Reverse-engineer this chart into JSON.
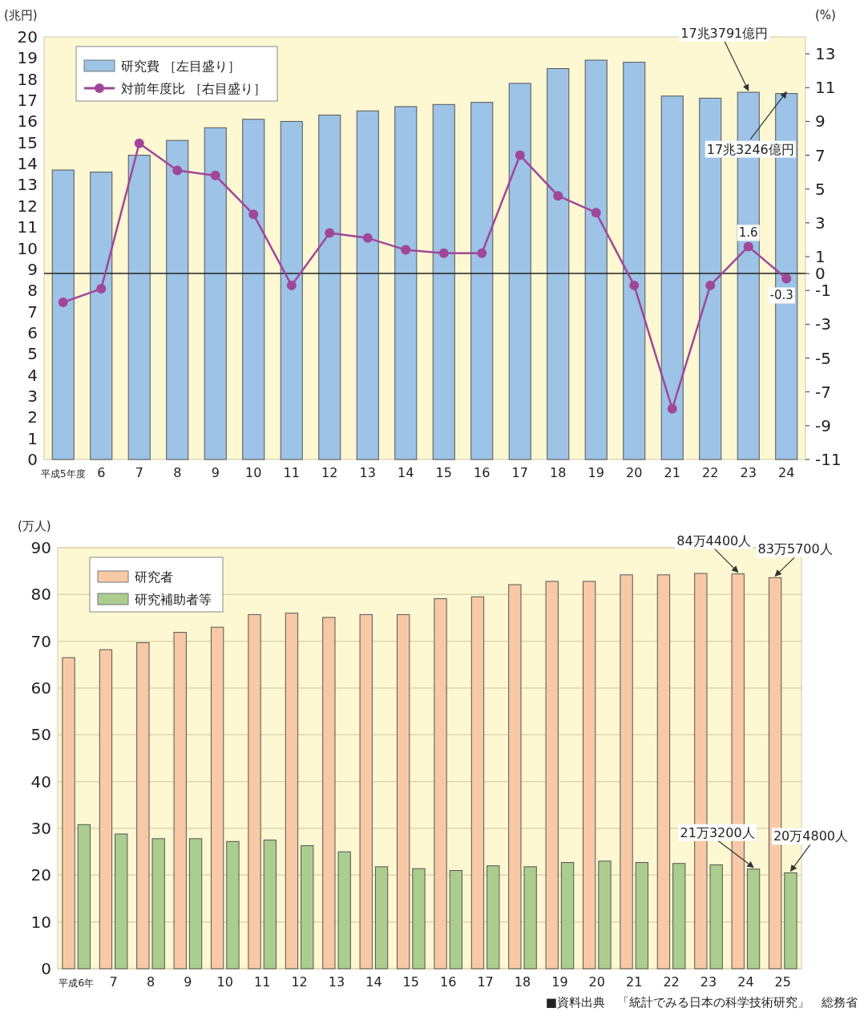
{
  "chart_data": [
    {
      "type": "bar",
      "ylabel": "(兆円)",
      "y2label": "(%)",
      "legend": "top left",
      "marker": "circle",
      "categories": [
        "平成5年度",
        "6",
        "7",
        "8",
        "9",
        "10",
        "11",
        "12",
        "13",
        "14",
        "15",
        "16",
        "17",
        "18",
        "19",
        "20",
        "21",
        "22",
        "23",
        "24"
      ],
      "ylim": [
        0,
        20
      ],
      "yticks": [
        0,
        1,
        2,
        3,
        4,
        5,
        6,
        7,
        8,
        9,
        10,
        11,
        12,
        13,
        14,
        15,
        16,
        17,
        18,
        19,
        20
      ],
      "y2lim": [
        -11,
        14
      ],
      "y2ticks": [
        13,
        11,
        9,
        7,
        5,
        3,
        1,
        0,
        -1,
        -3,
        -5,
        -7,
        -9,
        -11
      ],
      "series": [
        {
          "name": "研究費 ［左目盛り］",
          "color": "#9dc3e6",
          "values": [
            13.7,
            13.6,
            14.4,
            15.1,
            15.7,
            16.1,
            16.0,
            16.3,
            16.5,
            16.7,
            16.8,
            16.9,
            17.8,
            18.5,
            18.9,
            18.8,
            17.2,
            17.1,
            17.38,
            17.32
          ]
        },
        {
          "name": "対前年度比 ［右目盛り］",
          "type": "line",
          "axis": "y2",
          "color": "#a0479a",
          "values": [
            -1.7,
            -0.9,
            7.7,
            6.1,
            5.8,
            3.5,
            -0.7,
            2.4,
            2.1,
            1.4,
            1.2,
            1.2,
            7.0,
            4.6,
            3.6,
            -0.7,
            -8.0,
            -0.7,
            1.6,
            -0.3
          ],
          "value_labels": [
            null,
            null,
            null,
            null,
            null,
            null,
            null,
            null,
            null,
            null,
            null,
            null,
            null,
            null,
            null,
            null,
            null,
            null,
            "1.6",
            "-0.3"
          ]
        }
      ],
      "ref_lines": [
        {
          "axis": "y2",
          "value": 0,
          "color": "#222222"
        }
      ],
      "annotations": [
        {
          "text": "17兆3791億円",
          "x": "23",
          "y": 17.38
        },
        {
          "text": "17兆3246億円",
          "x": "24",
          "y": 17.32
        }
      ]
    },
    {
      "type": "bar",
      "ylabel": "(万人)",
      "legend": "top left",
      "grid": "y",
      "categories": [
        "平成6年",
        "7",
        "8",
        "9",
        "10",
        "11",
        "12",
        "13",
        "14",
        "15",
        "16",
        "17",
        "18",
        "19",
        "20",
        "21",
        "22",
        "23",
        "24",
        "25"
      ],
      "ylim": [
        0,
        90
      ],
      "yticks": [
        0,
        10,
        20,
        30,
        40,
        50,
        60,
        70,
        80,
        90
      ],
      "series": [
        {
          "name": "研究者",
          "color": "#f9c9a6",
          "values": [
            66.5,
            68.2,
            69.7,
            71.9,
            73.0,
            75.7,
            76.0,
            75.1,
            75.7,
            75.7,
            79.1,
            79.5,
            82.1,
            82.8,
            82.8,
            84.2,
            84.2,
            84.5,
            84.4,
            83.6
          ]
        },
        {
          "name": "研究補助者等",
          "color": "#abcd8e",
          "values": [
            30.8,
            28.8,
            27.8,
            27.8,
            27.2,
            27.5,
            26.3,
            25.0,
            21.8,
            21.4,
            21.0,
            22.0,
            21.8,
            22.7,
            23.0,
            22.7,
            22.5,
            22.2,
            21.3,
            20.5
          ]
        }
      ],
      "annotations": [
        {
          "text": "84万4400人",
          "x": "24",
          "y": 84.4
        },
        {
          "text": "83万5700人",
          "x": "25",
          "y": 83.6
        },
        {
          "text": "21万3200人",
          "x": "24",
          "y": 21.3
        },
        {
          "text": "20万4800人",
          "x": "25",
          "y": 20.5
        },
        "■資料出典　「統計でみる日本の科学技術研究」　総務省"
      ]
    }
  ]
}
